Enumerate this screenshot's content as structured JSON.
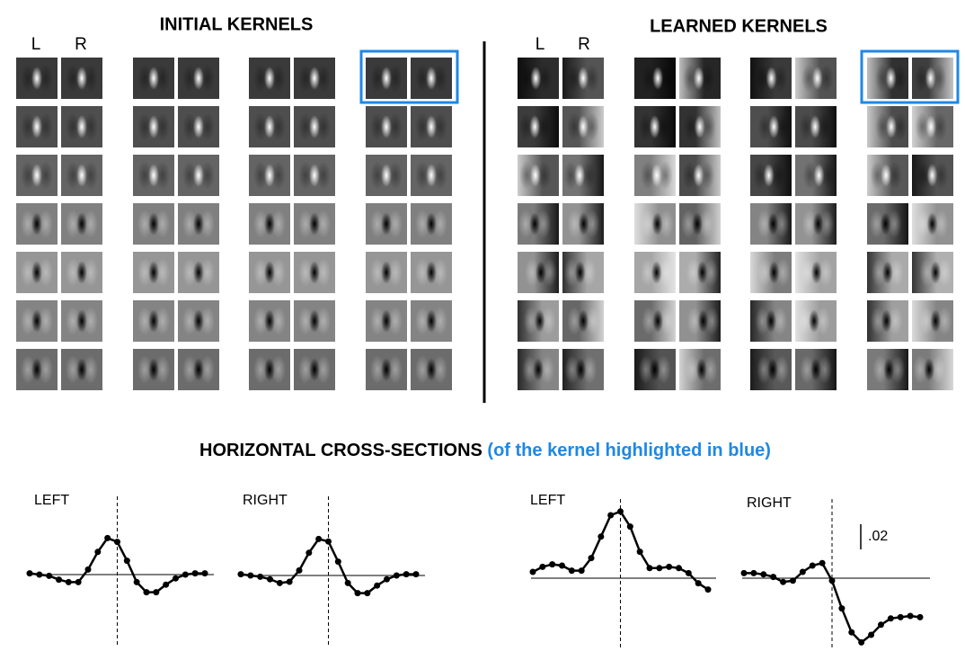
{
  "panels": [
    {
      "title": "INITIAL KERNELS",
      "columns": [
        "L",
        "R"
      ]
    },
    {
      "title": "LEARNED KERNELS",
      "columns": [
        "L",
        "R"
      ]
    }
  ],
  "cross_sections": {
    "title": "HORIZONTAL CROSS-SECTIONS",
    "subtitle": "(of the kernel highlighted in blue)",
    "scale_bar": {
      "value": 0.02,
      "label": ".02"
    }
  },
  "chart_data": [
    {
      "type": "line",
      "title": "LEFT",
      "color": "#000000",
      "values": [
        0.001,
        0,
        -0.001,
        -0.004,
        -0.006,
        -0.006,
        0.004,
        0.018,
        0.029,
        0.026,
        0.011,
        -0.006,
        -0.014,
        -0.014,
        -0.008,
        -0.003,
        0,
        0.001,
        0.001
      ]
    },
    {
      "type": "line",
      "title": "RIGHT",
      "color": "#000000",
      "values": [
        0.001,
        0,
        -0.001,
        -0.003,
        -0.006,
        -0.005,
        0.004,
        0.018,
        0.029,
        0.027,
        0.011,
        -0.006,
        -0.014,
        -0.014,
        -0.008,
        -0.003,
        0,
        0.001,
        0.001
      ]
    },
    {
      "type": "line",
      "title": "LEFT",
      "color": "#000000",
      "values": [
        0.005,
        0.009,
        0.011,
        0.01,
        0.006,
        0.006,
        0.016,
        0.033,
        0.05,
        0.053,
        0.041,
        0.021,
        0.008,
        0.008,
        0.009,
        0.008,
        0.004,
        -0.004,
        -0.009
      ]
    },
    {
      "type": "line",
      "title": "RIGHT",
      "color": "#000000",
      "values": [
        0.004,
        0.004,
        0.003,
        0.001,
        -0.003,
        -0.002,
        0.005,
        0.01,
        0.012,
        -0.002,
        -0.024,
        -0.043,
        -0.051,
        -0.045,
        -0.037,
        -0.032,
        -0.031,
        -0.03,
        -0.031
      ]
    }
  ]
}
